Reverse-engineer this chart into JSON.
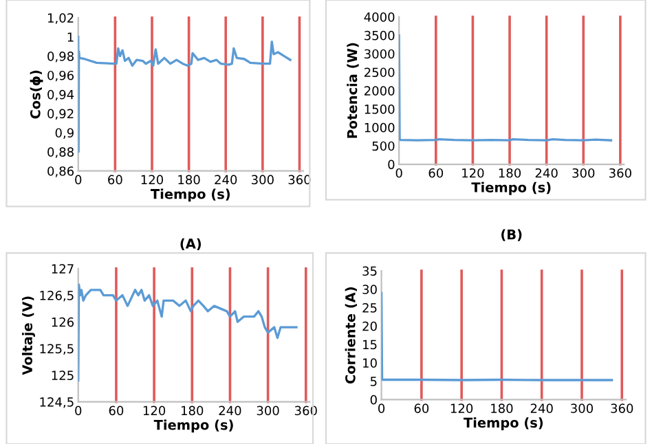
{
  "chart_data": [
    {
      "type": "line",
      "title": "(A)",
      "xlabel": "Tiempo (s)",
      "ylabel": "Cos(ϕ)",
      "grid": false,
      "legend": false,
      "xlim": [
        0,
        366
      ],
      "xticks": [
        0,
        60,
        120,
        180,
        240,
        300,
        360
      ],
      "ylim": [
        0.86,
        1.02
      ],
      "yticks": [
        {
          "value": 0.86,
          "label": "0,86"
        },
        {
          "value": 0.88,
          "label": "0,88"
        },
        {
          "value": 0.9,
          "label": "0,9"
        },
        {
          "value": 0.92,
          "label": "0,92"
        },
        {
          "value": 0.94,
          "label": "0,94"
        },
        {
          "value": 0.96,
          "label": "0,96"
        },
        {
          "value": 0.98,
          "label": "0,98"
        },
        {
          "value": 1,
          "label": "1"
        },
        {
          "value": 1.02,
          "label": "1,02"
        }
      ],
      "ref_lines": [
        {
          "axis": "x",
          "value": 60,
          "color": "#e05a5a"
        },
        {
          "axis": "x",
          "value": 120,
          "color": "#e05a5a"
        },
        {
          "axis": "x",
          "value": 180,
          "color": "#e05a5a"
        },
        {
          "axis": "x",
          "value": 240,
          "color": "#e05a5a"
        },
        {
          "axis": "x",
          "value": 300,
          "color": "#e05a5a"
        },
        {
          "axis": "x",
          "value": 360,
          "color": "#e05a5a"
        }
      ],
      "series": [
        {
          "color": "#5b9bd5",
          "x": [
            0,
            0.5,
            1,
            2,
            10,
            30,
            58,
            62,
            65,
            68,
            72,
            76,
            82,
            88,
            95,
            105,
            110,
            118,
            122,
            126,
            130,
            140,
            150,
            160,
            170,
            178,
            184,
            186,
            195,
            205,
            215,
            225,
            232,
            245,
            250,
            253,
            258,
            270,
            280,
            300,
            312,
            315,
            318,
            325,
            335,
            345
          ],
          "values": [
            1.0,
            0.88,
            0.985,
            0.978,
            0.977,
            0.973,
            0.972,
            0.972,
            0.988,
            0.98,
            0.986,
            0.975,
            0.978,
            0.97,
            0.976,
            0.975,
            0.972,
            0.975,
            0.97,
            0.987,
            0.972,
            0.978,
            0.972,
            0.976,
            0.972,
            0.97,
            0.972,
            0.983,
            0.976,
            0.978,
            0.974,
            0.976,
            0.972,
            0.971,
            0.972,
            0.988,
            0.978,
            0.977,
            0.973,
            0.972,
            0.972,
            0.995,
            0.982,
            0.984,
            0.98,
            0.976
          ]
        }
      ]
    },
    {
      "type": "line",
      "title": "(B)",
      "xlabel": "Tiempo (s)",
      "ylabel": "Potencia (W)",
      "grid": false,
      "legend": false,
      "xlim": [
        0,
        366
      ],
      "xticks": [
        0,
        60,
        120,
        180,
        240,
        300,
        360
      ],
      "ylim": [
        0,
        4000
      ],
      "yticks": [
        0,
        500,
        1000,
        1500,
        2000,
        2500,
        3000,
        3500,
        4000
      ],
      "ref_lines": [
        {
          "axis": "x",
          "value": 60,
          "color": "#e05a5a"
        },
        {
          "axis": "x",
          "value": 120,
          "color": "#e05a5a"
        },
        {
          "axis": "x",
          "value": 180,
          "color": "#e05a5a"
        },
        {
          "axis": "x",
          "value": 240,
          "color": "#e05a5a"
        },
        {
          "axis": "x",
          "value": 300,
          "color": "#e05a5a"
        },
        {
          "axis": "x",
          "value": 360,
          "color": "#e05a5a"
        }
      ],
      "series": [
        {
          "color": "#5b9bd5",
          "x": [
            0,
            1,
            2,
            30,
            60,
            65,
            90,
            120,
            150,
            180,
            185,
            210,
            240,
            250,
            270,
            300,
            320,
            345
          ],
          "values": [
            3500,
            700,
            660,
            650,
            660,
            680,
            660,
            650,
            660,
            650,
            680,
            660,
            650,
            680,
            660,
            650,
            670,
            650
          ]
        }
      ]
    },
    {
      "type": "line",
      "xlabel": "Tiempo (s)",
      "ylabel": "Voltaje (V)",
      "grid": false,
      "legend": false,
      "xlim": [
        0,
        366
      ],
      "xticks": [
        0,
        60,
        120,
        180,
        240,
        300,
        360
      ],
      "ylim": [
        124.5,
        127
      ],
      "yticks": [
        {
          "value": 124.5,
          "label": "124,5"
        },
        {
          "value": 125,
          "label": "125"
        },
        {
          "value": 125.5,
          "label": "125,5"
        },
        {
          "value": 126,
          "label": "126"
        },
        {
          "value": 126.5,
          "label": "126,5"
        },
        {
          "value": 127,
          "label": "127"
        }
      ],
      "ref_lines": [
        {
          "axis": "x",
          "value": 60,
          "color": "#e05a5a"
        },
        {
          "axis": "x",
          "value": 120,
          "color": "#e05a5a"
        },
        {
          "axis": "x",
          "value": 180,
          "color": "#e05a5a"
        },
        {
          "axis": "x",
          "value": 240,
          "color": "#e05a5a"
        },
        {
          "axis": "x",
          "value": 300,
          "color": "#e05a5a"
        },
        {
          "axis": "x",
          "value": 360,
          "color": "#e05a5a"
        }
      ],
      "series": [
        {
          "color": "#5b9bd5",
          "x": [
            0,
            1,
            3,
            5,
            8,
            12,
            20,
            35,
            40,
            55,
            60,
            70,
            78,
            82,
            90,
            95,
            100,
            105,
            112,
            118,
            125,
            132,
            135,
            150,
            160,
            170,
            178,
            182,
            190,
            198,
            205,
            215,
            235,
            240,
            248,
            252,
            262,
            278,
            285,
            290,
            295,
            300,
            310,
            315,
            320,
            330,
            345
          ],
          "values": [
            124.9,
            126.7,
            126.5,
            126.6,
            126.4,
            126.5,
            126.6,
            126.6,
            126.5,
            126.5,
            126.4,
            126.5,
            126.3,
            126.4,
            126.6,
            126.5,
            126.6,
            126.4,
            126.5,
            126.3,
            126.4,
            126.1,
            126.4,
            126.4,
            126.3,
            126.4,
            126.2,
            126.3,
            126.4,
            126.3,
            126.2,
            126.3,
            126.2,
            126.1,
            126.2,
            126.0,
            126.1,
            126.1,
            126.2,
            126.1,
            125.9,
            125.8,
            125.9,
            125.7,
            125.9,
            125.9,
            125.9
          ]
        }
      ]
    },
    {
      "type": "line",
      "xlabel": "Tiempo (s)",
      "ylabel": "Corriente (A)",
      "grid": false,
      "legend": false,
      "xlim": [
        0,
        366
      ],
      "xticks": [
        0,
        60,
        120,
        180,
        240,
        300,
        360
      ],
      "ylim": [
        0,
        35
      ],
      "yticks": [
        0,
        5,
        10,
        15,
        20,
        25,
        30,
        35
      ],
      "ref_lines": [
        {
          "axis": "x",
          "value": 60,
          "color": "#e05a5a"
        },
        {
          "axis": "x",
          "value": 120,
          "color": "#e05a5a"
        },
        {
          "axis": "x",
          "value": 180,
          "color": "#e05a5a"
        },
        {
          "axis": "x",
          "value": 240,
          "color": "#e05a5a"
        },
        {
          "axis": "x",
          "value": 300,
          "color": "#e05a5a"
        },
        {
          "axis": "x",
          "value": 360,
          "color": "#e05a5a"
        }
      ],
      "series": [
        {
          "color": "#5b9bd5",
          "x": [
            0,
            1,
            2,
            60,
            120,
            180,
            240,
            300,
            345
          ],
          "values": [
            29,
            5.5,
            5.4,
            5.4,
            5.3,
            5.4,
            5.3,
            5.3,
            5.3
          ]
        }
      ]
    }
  ]
}
